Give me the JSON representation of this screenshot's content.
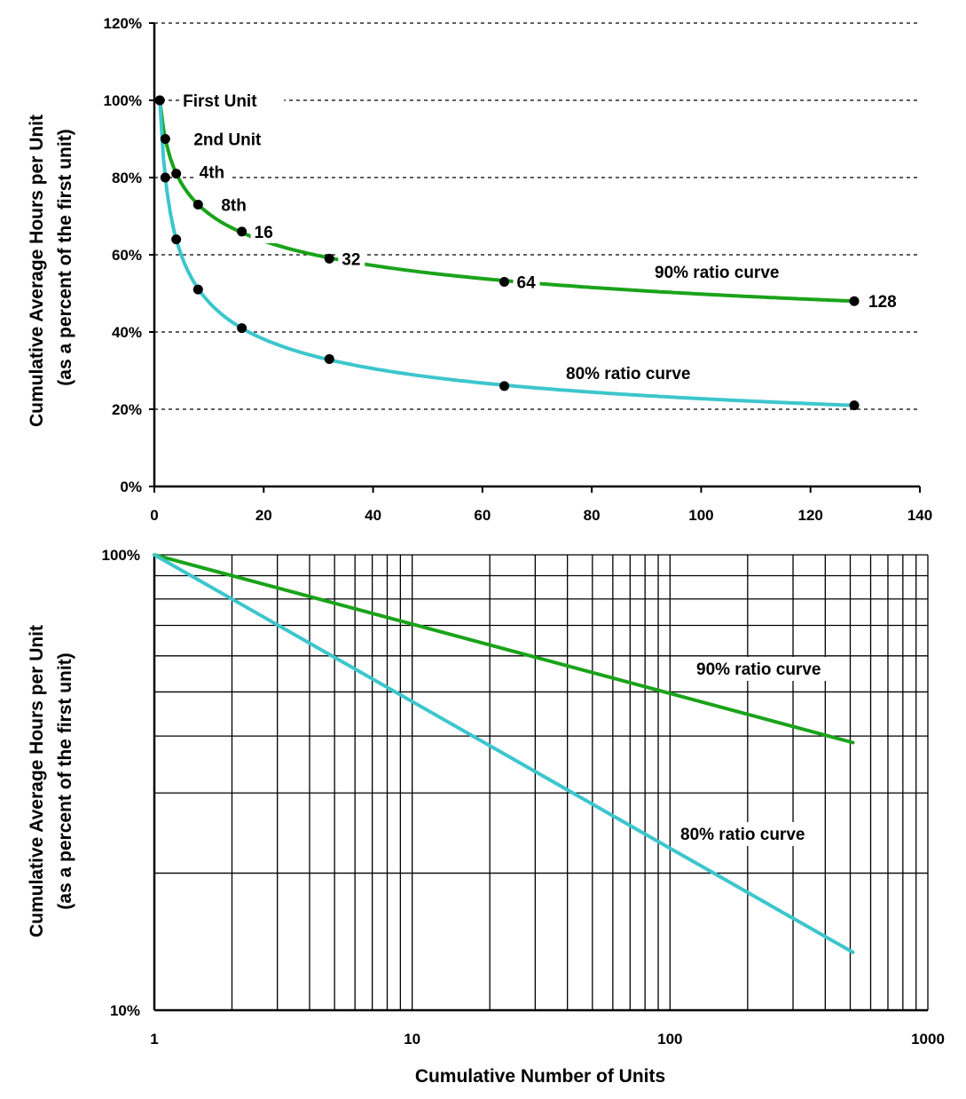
{
  "chart_data": [
    {
      "type": "line",
      "scale": "linear",
      "ylabel_lines": [
        "Cumulative Average Hours per Unit",
        "(as a percent of the first unit)"
      ],
      "xlabel": "",
      "xlim": [
        0,
        140
      ],
      "ylim": [
        0,
        1.2
      ],
      "x_ticks": [
        "0",
        "20",
        "40",
        "60",
        "80",
        "100",
        "120",
        "140"
      ],
      "y_ticks": [
        "0%",
        "20%",
        "40%",
        "60%",
        "80%",
        "100%",
        "120%"
      ],
      "grid": "horizontal dashed",
      "series": [
        {
          "name": "90% ratio curve",
          "color": "#1aa31a",
          "x": [
            1,
            2,
            4,
            8,
            16,
            32,
            64,
            128
          ],
          "y": [
            1.0,
            0.9,
            0.81,
            0.73,
            0.66,
            0.59,
            0.53,
            0.48
          ],
          "point_labels": [
            "First Unit",
            "2nd Unit",
            "4th",
            "8th",
            "16",
            "32",
            "64",
            "128"
          ]
        },
        {
          "name": "80% ratio curve",
          "color": "#3cc6cc",
          "x": [
            1,
            2,
            4,
            8,
            16,
            32,
            64,
            128
          ],
          "y": [
            1.0,
            0.8,
            0.64,
            0.51,
            0.41,
            0.33,
            0.26,
            0.21
          ]
        }
      ]
    },
    {
      "type": "line",
      "scale": "log-log",
      "ylabel_lines": [
        "Cumulative Average Hours per Unit",
        "(as a percent of the first unit)"
      ],
      "xlabel": "Cumulative Number of Units",
      "xlim": [
        1,
        1000
      ],
      "ylim": [
        0.1,
        1.0
      ],
      "x_ticks": [
        "1",
        "10",
        "100",
        "1000"
      ],
      "y_ticks": [
        "10%",
        "100%"
      ],
      "grid": "log grid",
      "series": [
        {
          "name": "90% ratio curve",
          "color": "#1aa31a",
          "x": [
            1,
            512
          ],
          "y": [
            1.0,
            0.387
          ]
        },
        {
          "name": "80% ratio curve",
          "color": "#3cc6cc",
          "x": [
            1,
            512
          ],
          "y": [
            1.0,
            0.134
          ]
        }
      ]
    }
  ]
}
